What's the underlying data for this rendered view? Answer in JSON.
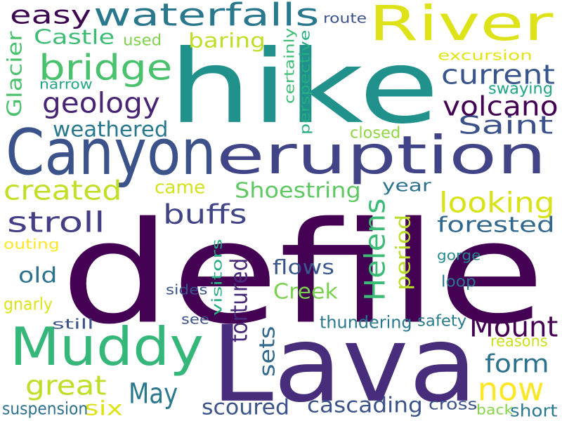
{
  "words": [
    {
      "text": "defile",
      "color": "#440154"
    },
    {
      "text": "Lava",
      "color": "#472d7b"
    },
    {
      "text": "hike",
      "color": "#21918c"
    },
    {
      "text": "Canyon",
      "color": "#3b528b"
    },
    {
      "text": "eruption",
      "color": "#414487"
    },
    {
      "text": "River",
      "color": "#dde318"
    },
    {
      "text": "Muddy",
      "color": "#35b779"
    },
    {
      "text": "waterfalls",
      "color": "#2a788e"
    },
    {
      "text": "bridge",
      "color": "#4ac16d"
    },
    {
      "text": "now",
      "color": "#fde725"
    },
    {
      "text": "Mount",
      "color": "#440154"
    },
    {
      "text": "Helens",
      "color": "#3bbb75"
    },
    {
      "text": "Saint",
      "color": "#3b528b"
    },
    {
      "text": "volcano",
      "color": "#440154"
    },
    {
      "text": "geology",
      "color": "#482475"
    },
    {
      "text": "current",
      "color": "#39568c"
    },
    {
      "text": "easy",
      "color": "#3e0751"
    },
    {
      "text": "great",
      "color": "#bddf26"
    },
    {
      "text": "May",
      "color": "#2a788e"
    },
    {
      "text": "buffs",
      "color": "#414487"
    },
    {
      "text": "stroll",
      "color": "#433e85"
    },
    {
      "text": "looking",
      "color": "#d8e219"
    },
    {
      "text": "created",
      "color": "#c0df25"
    },
    {
      "text": "form",
      "color": "#2c728e"
    },
    {
      "text": "weathered",
      "color": "#2a788e"
    },
    {
      "text": "Shoestring",
      "color": "#5ec962"
    },
    {
      "text": "Castle",
      "color": "#3dbc74"
    },
    {
      "text": "tortured",
      "color": "#482878"
    },
    {
      "text": "cascading",
      "color": "#3b528b"
    },
    {
      "text": "scoured",
      "color": "#3b528b"
    },
    {
      "text": "forested",
      "color": "#31688e"
    },
    {
      "text": "sets",
      "color": "#31688e"
    },
    {
      "text": "Creek",
      "color": "#7ad151"
    },
    {
      "text": "flows",
      "color": "#39568c"
    },
    {
      "text": "baring",
      "color": "#bddf26"
    },
    {
      "text": "period",
      "color": "#b8de29"
    },
    {
      "text": "Glacier",
      "color": "#4ac16d"
    },
    {
      "text": "old",
      "color": "#2c728e"
    },
    {
      "text": "year",
      "color": "#2c728e"
    },
    {
      "text": "came",
      "color": "#d2e21b"
    },
    {
      "text": "six",
      "color": "#dde318"
    },
    {
      "text": "visitors",
      "color": "#29af7f"
    },
    {
      "text": "certainly",
      "color": "#3dbc74"
    },
    {
      "text": "perspective",
      "color": "#26ad81"
    },
    {
      "text": "thundering",
      "color": "#2a788e"
    },
    {
      "text": "suspension",
      "color": "#2d708e"
    },
    {
      "text": "cross",
      "color": "#3b528b"
    },
    {
      "text": "short",
      "color": "#2a788e"
    },
    {
      "text": "swaying",
      "color": "#21a685"
    },
    {
      "text": "excursion",
      "color": "#e2e418"
    },
    {
      "text": "closed",
      "color": "#90d743"
    },
    {
      "text": "gorge",
      "color": "#238a8d"
    },
    {
      "text": "loop",
      "color": "#2c728e"
    },
    {
      "text": "safety",
      "color": "#297b8e"
    },
    {
      "text": "reasons",
      "color": "#cae11f"
    },
    {
      "text": "back",
      "color": "#86d549"
    },
    {
      "text": "route",
      "color": "#3b528b"
    },
    {
      "text": "used",
      "color": "#7fd34e"
    },
    {
      "text": "narrow",
      "color": "#22a785"
    },
    {
      "text": "outing",
      "color": "#fde725"
    },
    {
      "text": "gnarly",
      "color": "#dde318"
    },
    {
      "text": "sides",
      "color": "#39568c"
    },
    {
      "text": "see",
      "color": "#3b528b"
    },
    {
      "text": "still",
      "color": "#3b528b"
    }
  ]
}
